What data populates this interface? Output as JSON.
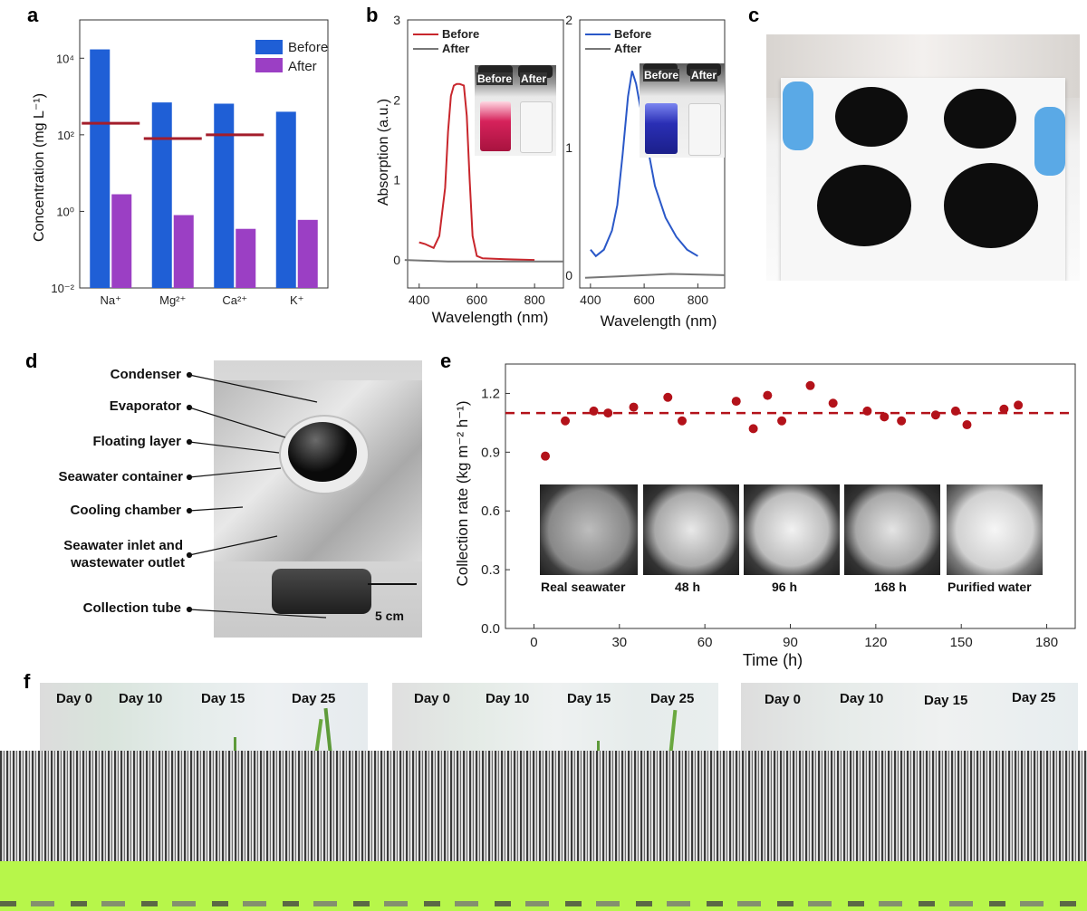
{
  "panels": {
    "a": "a",
    "b": "b",
    "c": "c",
    "d": "d",
    "e": "e",
    "f": "f"
  },
  "chart_data": [
    {
      "id": "a",
      "type": "bar",
      "categories": [
        "Na⁺",
        "Mg²⁺",
        "Ca²⁺",
        "K⁺"
      ],
      "series": [
        {
          "name": "Before",
          "values": [
            17000,
            700,
            650,
            400
          ]
        },
        {
          "name": "After",
          "values": [
            2.8,
            0.8,
            0.35,
            0.6
          ]
        }
      ],
      "reference_levels": [
        200,
        80,
        100
      ],
      "ylabel": "Concentration (mg L⁻¹)",
      "yscale": "log",
      "ylim": [
        0.01,
        100000
      ],
      "yticks": [
        "10⁻²",
        "10⁰",
        "10²",
        "10⁴"
      ],
      "legend": "top-right",
      "colors": {
        "Before": "#1f5fd6",
        "After": "#9b3fc4",
        "reference": "#a31d2b"
      }
    },
    {
      "id": "b-left",
      "type": "line",
      "series": [
        {
          "name": "Before",
          "x": [
            400,
            420,
            450,
            470,
            490,
            500,
            510,
            520,
            530,
            540,
            555,
            565,
            575,
            585,
            600,
            620,
            700,
            800
          ],
          "y": [
            0.22,
            0.2,
            0.15,
            0.3,
            0.9,
            1.6,
            2.05,
            2.18,
            2.2,
            2.2,
            2.18,
            1.8,
            1.0,
            0.3,
            0.05,
            0.02,
            0.01,
            0.0
          ]
        },
        {
          "name": "After",
          "x": [
            350,
            500,
            700,
            900
          ],
          "y": [
            0.0,
            -0.02,
            -0.02,
            -0.02
          ]
        }
      ],
      "xlabel": "Wavelength (nm)",
      "ylabel": "Absorption (a.u.)",
      "xticks": [
        "400",
        "600",
        "800"
      ],
      "yticks": [
        "0",
        "1",
        "2",
        "3"
      ],
      "legend": "top-left",
      "inset_labels": [
        "Before",
        "After"
      ],
      "colors": {
        "Before": "#c8262c",
        "After": "#777777"
      }
    },
    {
      "id": "b-right",
      "type": "line",
      "series": [
        {
          "name": "Before",
          "x": [
            400,
            420,
            450,
            480,
            500,
            520,
            540,
            555,
            570,
            600,
            640,
            680,
            720,
            760,
            800
          ],
          "y": [
            0.2,
            0.15,
            0.2,
            0.35,
            0.55,
            0.95,
            1.4,
            1.6,
            1.5,
            1.15,
            0.7,
            0.45,
            0.3,
            0.2,
            0.15
          ]
        },
        {
          "name": "After",
          "x": [
            380,
            500,
            700,
            900
          ],
          "y": [
            -0.02,
            -0.01,
            0.01,
            0.0
          ]
        }
      ],
      "xlabel": "Wavelength (nm)",
      "xticks": [
        "400",
        "600",
        "800"
      ],
      "yticks": [
        "0",
        "1",
        "2"
      ],
      "legend": "top-left",
      "inset_labels": [
        "Before",
        "After"
      ],
      "colors": {
        "Before": "#2a58c8",
        "After": "#777777"
      }
    },
    {
      "id": "e",
      "type": "scatter",
      "x": [
        4,
        11,
        21,
        26,
        35,
        47,
        52,
        71,
        77,
        82,
        87,
        97,
        105,
        117,
        123,
        129,
        141,
        148,
        152,
        165,
        170
      ],
      "y": [
        0.88,
        1.06,
        1.11,
        1.1,
        1.13,
        1.18,
        1.06,
        1.16,
        1.02,
        1.19,
        1.06,
        1.24,
        1.15,
        1.11,
        1.08,
        1.06,
        1.09,
        1.11,
        1.04,
        1.12,
        1.14
      ],
      "reference_line": 1.1,
      "xlabel": "Time (h)",
      "ylabel": "Collection rate (kg m⁻² h⁻¹)",
      "xlim": [
        -10,
        190
      ],
      "ylim": [
        0,
        1.35
      ],
      "xticks": [
        "0",
        "30",
        "60",
        "90",
        "120",
        "150",
        "180"
      ],
      "yticks": [
        "0.0",
        "0.3",
        "0.6",
        "0.9",
        "1.2"
      ],
      "inset_labels": [
        "Real seawater",
        "48 h",
        "96 h",
        "168 h",
        "Purified water"
      ],
      "colors": {
        "points": "#b3121a",
        "reference": "#b3121a"
      }
    }
  ],
  "panel_d": {
    "labels": [
      "Condenser",
      "Evaporator",
      "Floating layer",
      "Seawater container",
      "Cooling chamber",
      "Seawater inlet and",
      "wastewater outlet",
      "Collection tube"
    ],
    "scale_bar": "5 cm"
  },
  "panel_f": {
    "days": [
      "Day 0",
      "Day 10",
      "Day 15",
      "Day 25"
    ]
  }
}
